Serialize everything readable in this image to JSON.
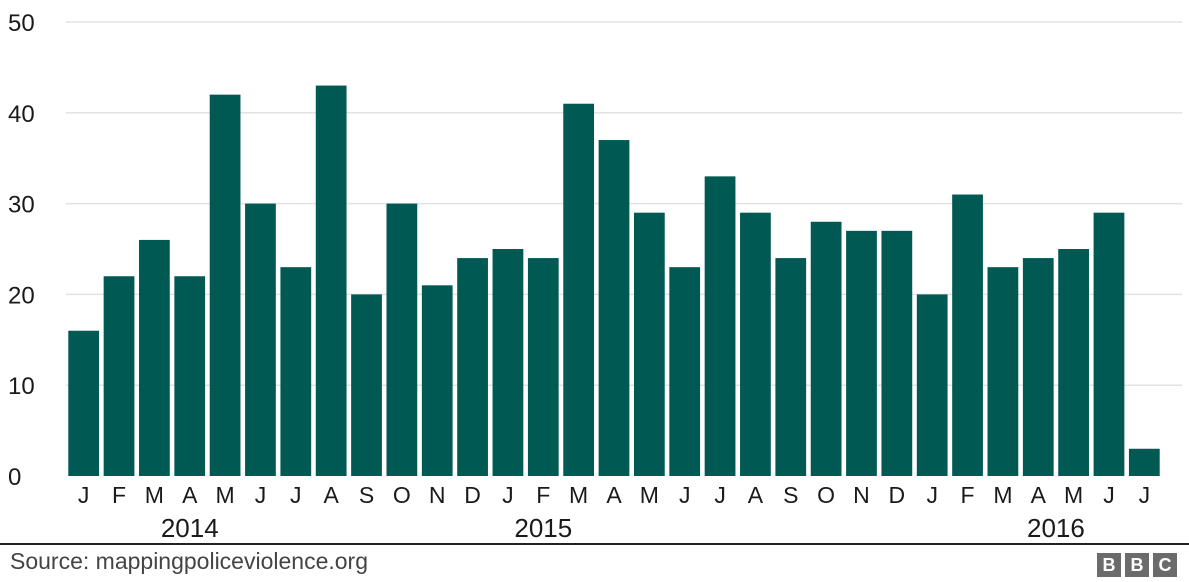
{
  "chart_data": {
    "type": "bar",
    "categories": [
      "J",
      "F",
      "M",
      "A",
      "M",
      "J",
      "J",
      "A",
      "S",
      "O",
      "N",
      "D",
      "J",
      "F",
      "M",
      "A",
      "M",
      "J",
      "J",
      "A",
      "S",
      "O",
      "N",
      "D",
      "J",
      "F",
      "M",
      "A",
      "M",
      "J",
      "J"
    ],
    "values": [
      16,
      22,
      26,
      22,
      42,
      30,
      23,
      43,
      20,
      30,
      21,
      24,
      25,
      24,
      41,
      37,
      29,
      23,
      33,
      29,
      24,
      28,
      27,
      27,
      20,
      31,
      23,
      24,
      25,
      29,
      3
    ],
    "year_labels": [
      {
        "label": "2014",
        "index": 3
      },
      {
        "label": "2015",
        "index": 13
      },
      {
        "label": "2016",
        "index": 27.5
      }
    ],
    "ylim": [
      0,
      50
    ],
    "yticks": [
      0,
      10,
      20,
      30,
      40,
      50
    ],
    "grid": true,
    "bar_color": "#005a53"
  },
  "footer": {
    "source": "Source: mappingpoliceviolence.org",
    "logo": [
      "B",
      "B",
      "C"
    ]
  }
}
